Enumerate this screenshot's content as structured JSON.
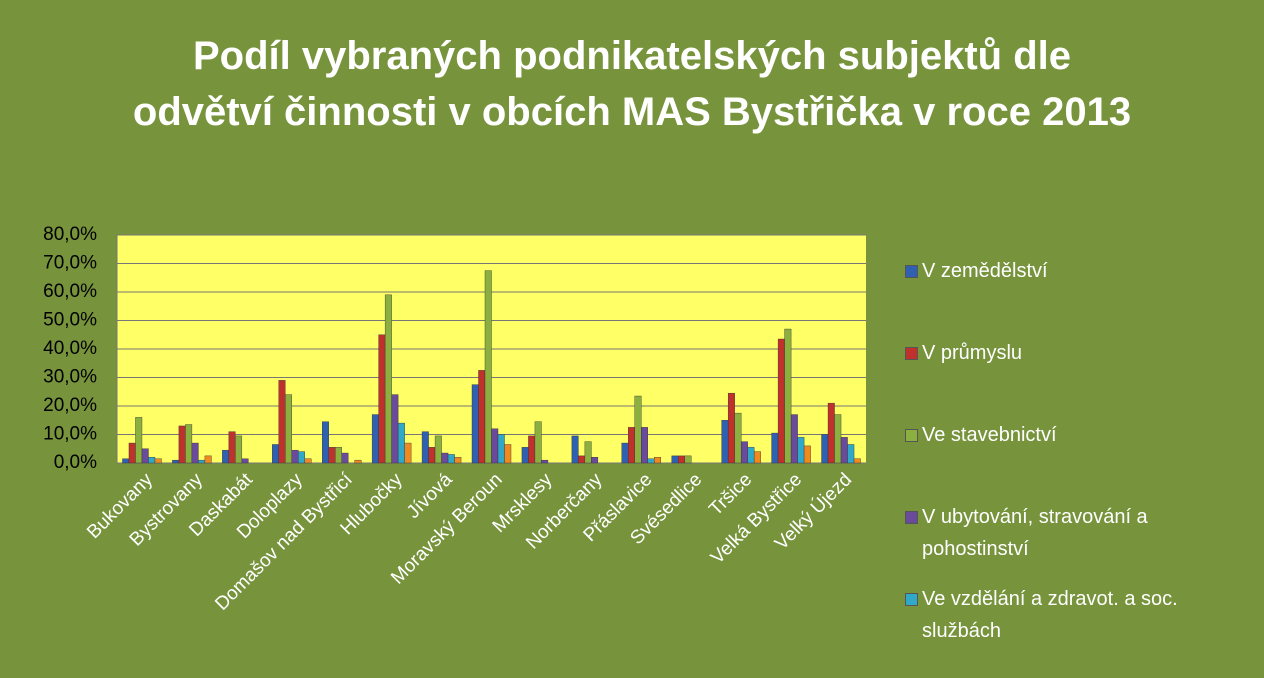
{
  "chart_data": {
    "type": "bar",
    "title": "Podíl vybraných podnikatelských subjektů dle odvětví činnosti v obcích MAS Bystřička v roce 2013",
    "categories": [
      "Bukovany",
      "Bystrovany",
      "Daskabát",
      "Doloplazy",
      "Domašov nad Bystřicí",
      "Hlubočky",
      "Jívová",
      "Moravský Beroun",
      "Mrsklesy",
      "Norberčany",
      "Přáslavice",
      "Svésedlice",
      "Tršice",
      "Velká Bystřice",
      "Velký Újezd"
    ],
    "series": [
      {
        "name": "V zemědělství",
        "color": "#3060b0",
        "values": [
          1.5,
          1,
          4.5,
          6.5,
          14.5,
          17,
          11,
          27.5,
          5.5,
          9.5,
          7,
          2.5,
          15,
          10.5,
          10
        ]
      },
      {
        "name": "V průmyslu",
        "color": "#c0302c",
        "values": [
          7,
          13,
          11,
          29,
          5.5,
          45,
          5.5,
          32.5,
          9.5,
          2.5,
          12.5,
          2.5,
          24.5,
          43.5,
          21
        ]
      },
      {
        "name": "Ve stavebnictví",
        "color": "#8cb040",
        "values": [
          16,
          13.5,
          9.5,
          24,
          5.5,
          59,
          9.5,
          67.5,
          14.5,
          7.5,
          23.5,
          2.5,
          17.5,
          47,
          17
        ]
      },
      {
        "name": "V ubytování, stravování a pohostinství",
        "color": "#6a4a9a",
        "values": [
          5,
          7,
          1.5,
          4.5,
          3.5,
          24,
          3.5,
          12,
          1,
          2,
          12.5,
          0,
          7.5,
          17,
          9
        ]
      },
      {
        "name": "Ve vzdělání a zdravot. a soc. službách",
        "color": "#30a8c8",
        "values": [
          2,
          1,
          0,
          4,
          0,
          14,
          3,
          10,
          0,
          0,
          1.5,
          0,
          5.5,
          9,
          6.5
        ]
      },
      {
        "color": "#f08a20",
        "values": [
          1.5,
          2.5,
          0,
          1.5,
          1,
          7,
          2,
          6.5,
          0,
          0,
          2,
          0,
          4,
          6,
          1.5
        ]
      }
    ],
    "ylim": [
      0,
      80
    ],
    "yticks": [
      {
        "value": 0,
        "label": "0,0%"
      },
      {
        "value": 10,
        "label": "10,0%"
      },
      {
        "value": 20,
        "label": "20,0%"
      },
      {
        "value": 30,
        "label": "30,0%"
      },
      {
        "value": 40,
        "label": "40,0%"
      },
      {
        "value": 50,
        "label": "50,0%"
      },
      {
        "value": 60,
        "label": "60,0%"
      },
      {
        "value": 70,
        "label": "70,0%"
      },
      {
        "value": 80,
        "label": "80,0%"
      }
    ],
    "grid": true,
    "legend": "right"
  }
}
